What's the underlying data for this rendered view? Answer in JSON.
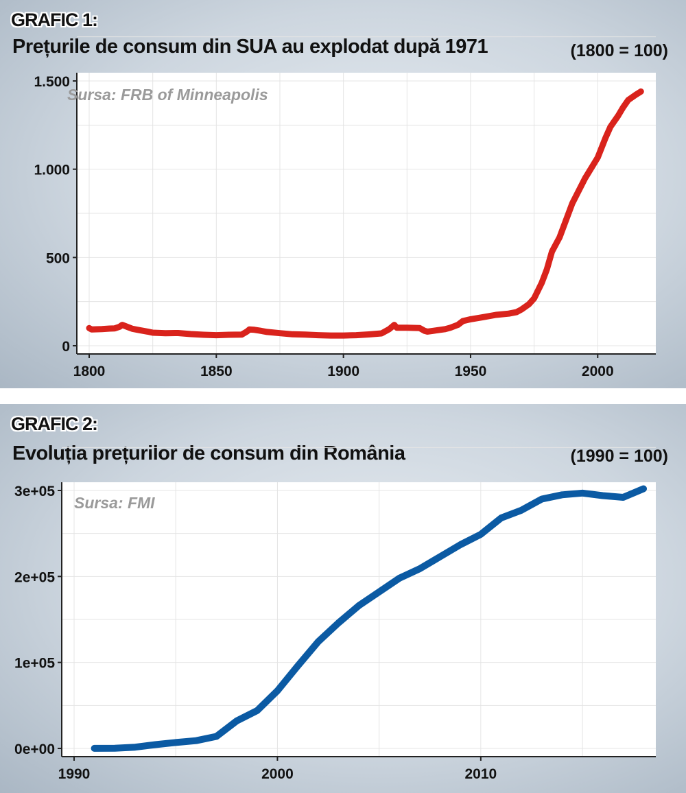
{
  "charts": [
    {
      "label": "GRAFIC 1:",
      "title": "Prețurile de consum din SUA au explodat după 1971",
      "base_note": "(1800 = 100)",
      "source": "Sursa: FRB of Minneapolis",
      "color": "#d9231c"
    },
    {
      "label": "GRAFIC 2:",
      "title": "Evoluția prețurilor de consum din România",
      "base_note": "(1990 = 100)",
      "source": "Sursa: FMI",
      "color": "#0b5aa3"
    }
  ],
  "chart_data": [
    {
      "type": "line",
      "title": "Prețurile de consum din SUA au explodat după 1971",
      "xlabel": "",
      "ylabel": "",
      "xlim": [
        1800,
        2018
      ],
      "ylim": [
        0,
        1500
      ],
      "x_ticks": [
        1800,
        1850,
        1900,
        1950,
        2000
      ],
      "y_ticks": [
        {
          "value": 0,
          "label": "0"
        },
        {
          "value": 500,
          "label": "500"
        },
        {
          "value": 1000,
          "label": "1.000"
        },
        {
          "value": 1500,
          "label": "1.500"
        }
      ],
      "grid": true,
      "legend": "none",
      "series": [
        {
          "color": "#d9231c",
          "x": [
            1800,
            1801,
            1802,
            1805,
            1808,
            1810,
            1812,
            1813,
            1815,
            1817,
            1820,
            1823,
            1825,
            1830,
            1835,
            1840,
            1845,
            1850,
            1855,
            1860,
            1862,
            1863,
            1865,
            1867,
            1870,
            1875,
            1880,
            1885,
            1890,
            1895,
            1900,
            1905,
            1910,
            1915,
            1918,
            1920,
            1921,
            1925,
            1930,
            1932,
            1933,
            1935,
            1940,
            1942,
            1945,
            1947,
            1950,
            1955,
            1960,
            1965,
            1968,
            1970,
            1973,
            1975,
            1978,
            1980,
            1982,
            1985,
            1990,
            1995,
            2000,
            2003,
            2005,
            2008,
            2010,
            2012,
            2015,
            2017
          ],
          "y": [
            100,
            92,
            93,
            94,
            97,
            98,
            108,
            118,
            107,
            96,
            88,
            80,
            74,
            71,
            72,
            66,
            62,
            60,
            62,
            63,
            80,
            92,
            90,
            86,
            78,
            71,
            65,
            63,
            60,
            58,
            58,
            60,
            64,
            70,
            94,
            118,
            102,
            102,
            100,
            84,
            80,
            84,
            94,
            102,
            118,
            140,
            150,
            162,
            175,
            182,
            190,
            205,
            236,
            268,
            356,
            433,
            533,
            614,
            806,
            948,
            1066,
            1175,
            1240,
            1302,
            1350,
            1392,
            1422,
            1440
          ]
        }
      ]
    },
    {
      "type": "line",
      "title": "Evoluția prețurilor de consum din România",
      "xlabel": "",
      "ylabel": "",
      "xlim": [
        1990,
        2018
      ],
      "ylim": [
        0,
        300000
      ],
      "x_ticks": [
        1990,
        2000,
        2010
      ],
      "y_ticks": [
        {
          "value": 0,
          "label": "0e+00"
        },
        {
          "value": 100000,
          "label": "1e+05"
        },
        {
          "value": 200000,
          "label": "2e+05"
        },
        {
          "value": 300000,
          "label": "3e+05"
        }
      ],
      "grid": true,
      "legend": "none",
      "series": [
        {
          "color": "#0b5aa3",
          "x": [
            1991,
            1992,
            1993,
            1994,
            1995,
            1996,
            1997,
            1998,
            1999,
            2000,
            2001,
            2002,
            2003,
            2004,
            2005,
            2006,
            2007,
            2008,
            2009,
            2010,
            2011,
            2012,
            2013,
            2014,
            2015,
            2016,
            2017,
            2018
          ],
          "y": [
            100,
            200,
            1400,
            4400,
            6900,
            9000,
            14000,
            32000,
            44000,
            67000,
            96000,
            124000,
            146000,
            166000,
            182000,
            198000,
            209000,
            223000,
            237000,
            249000,
            268000,
            277000,
            290000,
            295000,
            297000,
            294000,
            292000,
            302000
          ]
        }
      ]
    }
  ]
}
